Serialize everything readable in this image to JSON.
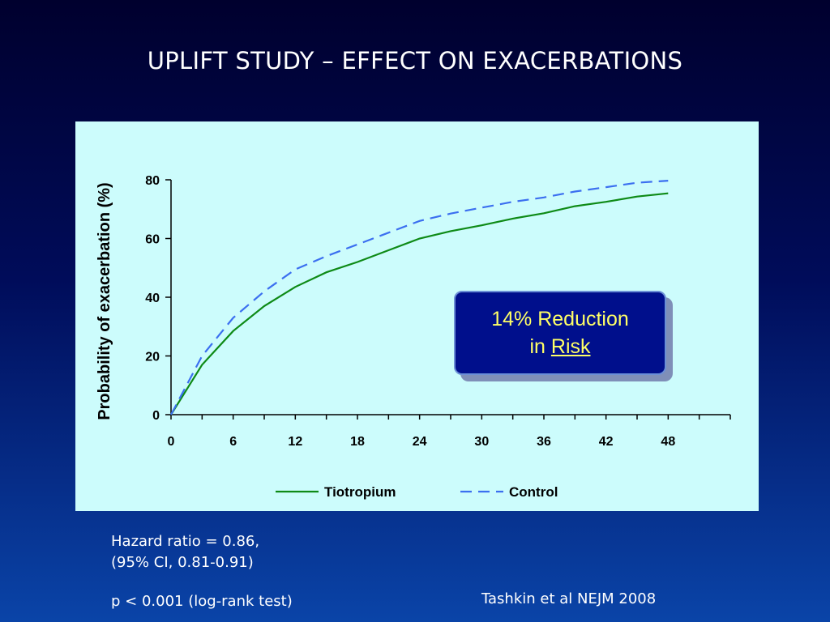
{
  "slide": {
    "title": "UPLIFT STUDY – EFFECT ON EXACERBATIONS"
  },
  "callout": {
    "line1": "14% Reduction",
    "line2_prefix": "in ",
    "line2_underlined": "Risk"
  },
  "stats": {
    "line1": "Hazard ratio = 0.86,",
    "line2": "(95% CI, 0.81-0.91)",
    "line3": "p < 0.001 (log-rank test)"
  },
  "citation": "Tashkin et al NEJM 2008",
  "colors": {
    "tiotropium": "#0e8a16",
    "control": "#3b6ff0",
    "callout_text": "#ffff66",
    "panel_bg": "#ccfcfc"
  },
  "chart_data": {
    "type": "line",
    "title": "",
    "xlabel": "",
    "ylabel": "Probability of exacerbation (%)",
    "xlim": [
      0,
      54
    ],
    "ylim": [
      0,
      80
    ],
    "x_ticks": [
      0,
      6,
      12,
      18,
      24,
      30,
      36,
      42,
      48
    ],
    "y_ticks": [
      0,
      20,
      40,
      60,
      80
    ],
    "legend_position": "bottom",
    "grid": false,
    "series": [
      {
        "name": "Tiotropium",
        "style": "solid",
        "x": [
          0,
          3,
          6,
          9,
          12,
          15,
          18,
          21,
          24,
          27,
          30,
          33,
          36,
          39,
          42,
          45,
          48
        ],
        "y": [
          0,
          17,
          28.5,
          37,
          43.5,
          48.5,
          52,
          56,
          60,
          62.5,
          64.5,
          66.8,
          68.6,
          71,
          72.5,
          74.3,
          75.4
        ]
      },
      {
        "name": "Control",
        "style": "dashed",
        "x": [
          0,
          3,
          6,
          9,
          12,
          15,
          18,
          21,
          24,
          27,
          30,
          33,
          36,
          39,
          42,
          45,
          48
        ],
        "y": [
          0,
          20,
          33,
          42,
          49.5,
          54,
          58,
          62,
          66,
          68.5,
          70.5,
          72.5,
          74,
          76,
          77.5,
          79,
          79.7
        ]
      }
    ]
  }
}
